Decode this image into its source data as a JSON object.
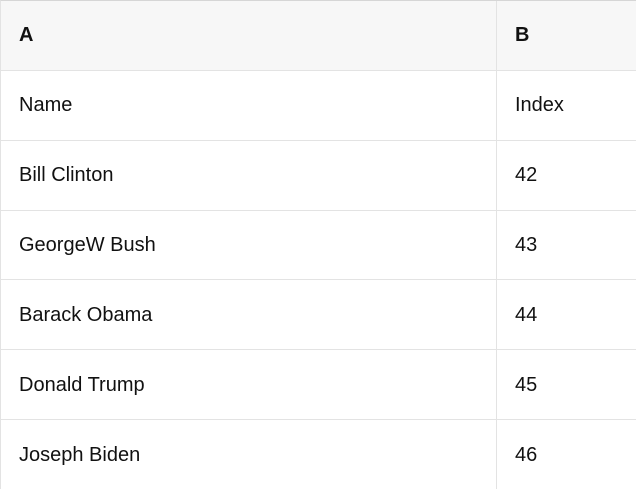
{
  "colors": {
    "header_bg": "#f7f7f7",
    "grid_border": "#e3e3e3",
    "outer_border": "#d6d6d6",
    "cell_bg": "#ffffff",
    "text": "#111111"
  },
  "table": {
    "column_headers": [
      "A",
      "B"
    ],
    "rows": [
      [
        "Name",
        "Index"
      ],
      [
        "Bill Clinton",
        "42"
      ],
      [
        "GeorgeW Bush",
        "43"
      ],
      [
        "Barack Obama",
        "44"
      ],
      [
        "Donald Trump",
        "45"
      ],
      [
        "Joseph Biden",
        "46"
      ]
    ]
  }
}
